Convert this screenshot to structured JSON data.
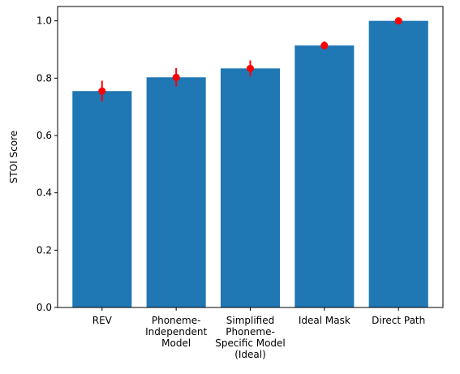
{
  "chart_data": {
    "type": "bar",
    "title": "",
    "xlabel": "",
    "ylabel": "STOI Score",
    "ylim": [
      0,
      1.05
    ],
    "yticks": [
      "0.0",
      "0.2",
      "0.4",
      "0.6",
      "0.8",
      "1.0"
    ],
    "categories": [
      [
        "REV"
      ],
      [
        "Phoneme-",
        "Independent",
        "Model"
      ],
      [
        "Simplified",
        "Phoneme-",
        "Specific Model",
        "(Ideal)"
      ],
      [
        "Ideal Mask"
      ],
      [
        "Direct Path"
      ]
    ],
    "values": [
      0.755,
      0.803,
      0.834,
      0.914,
      1.0
    ],
    "error_means": [
      0.755,
      0.803,
      0.834,
      0.914,
      1.0
    ],
    "error_bars": [
      0.036,
      0.032,
      0.028,
      0.014,
      0.0
    ],
    "bar_color": "#1f77b4",
    "error_color": "#ff0000",
    "grid": false,
    "legend": "none"
  }
}
